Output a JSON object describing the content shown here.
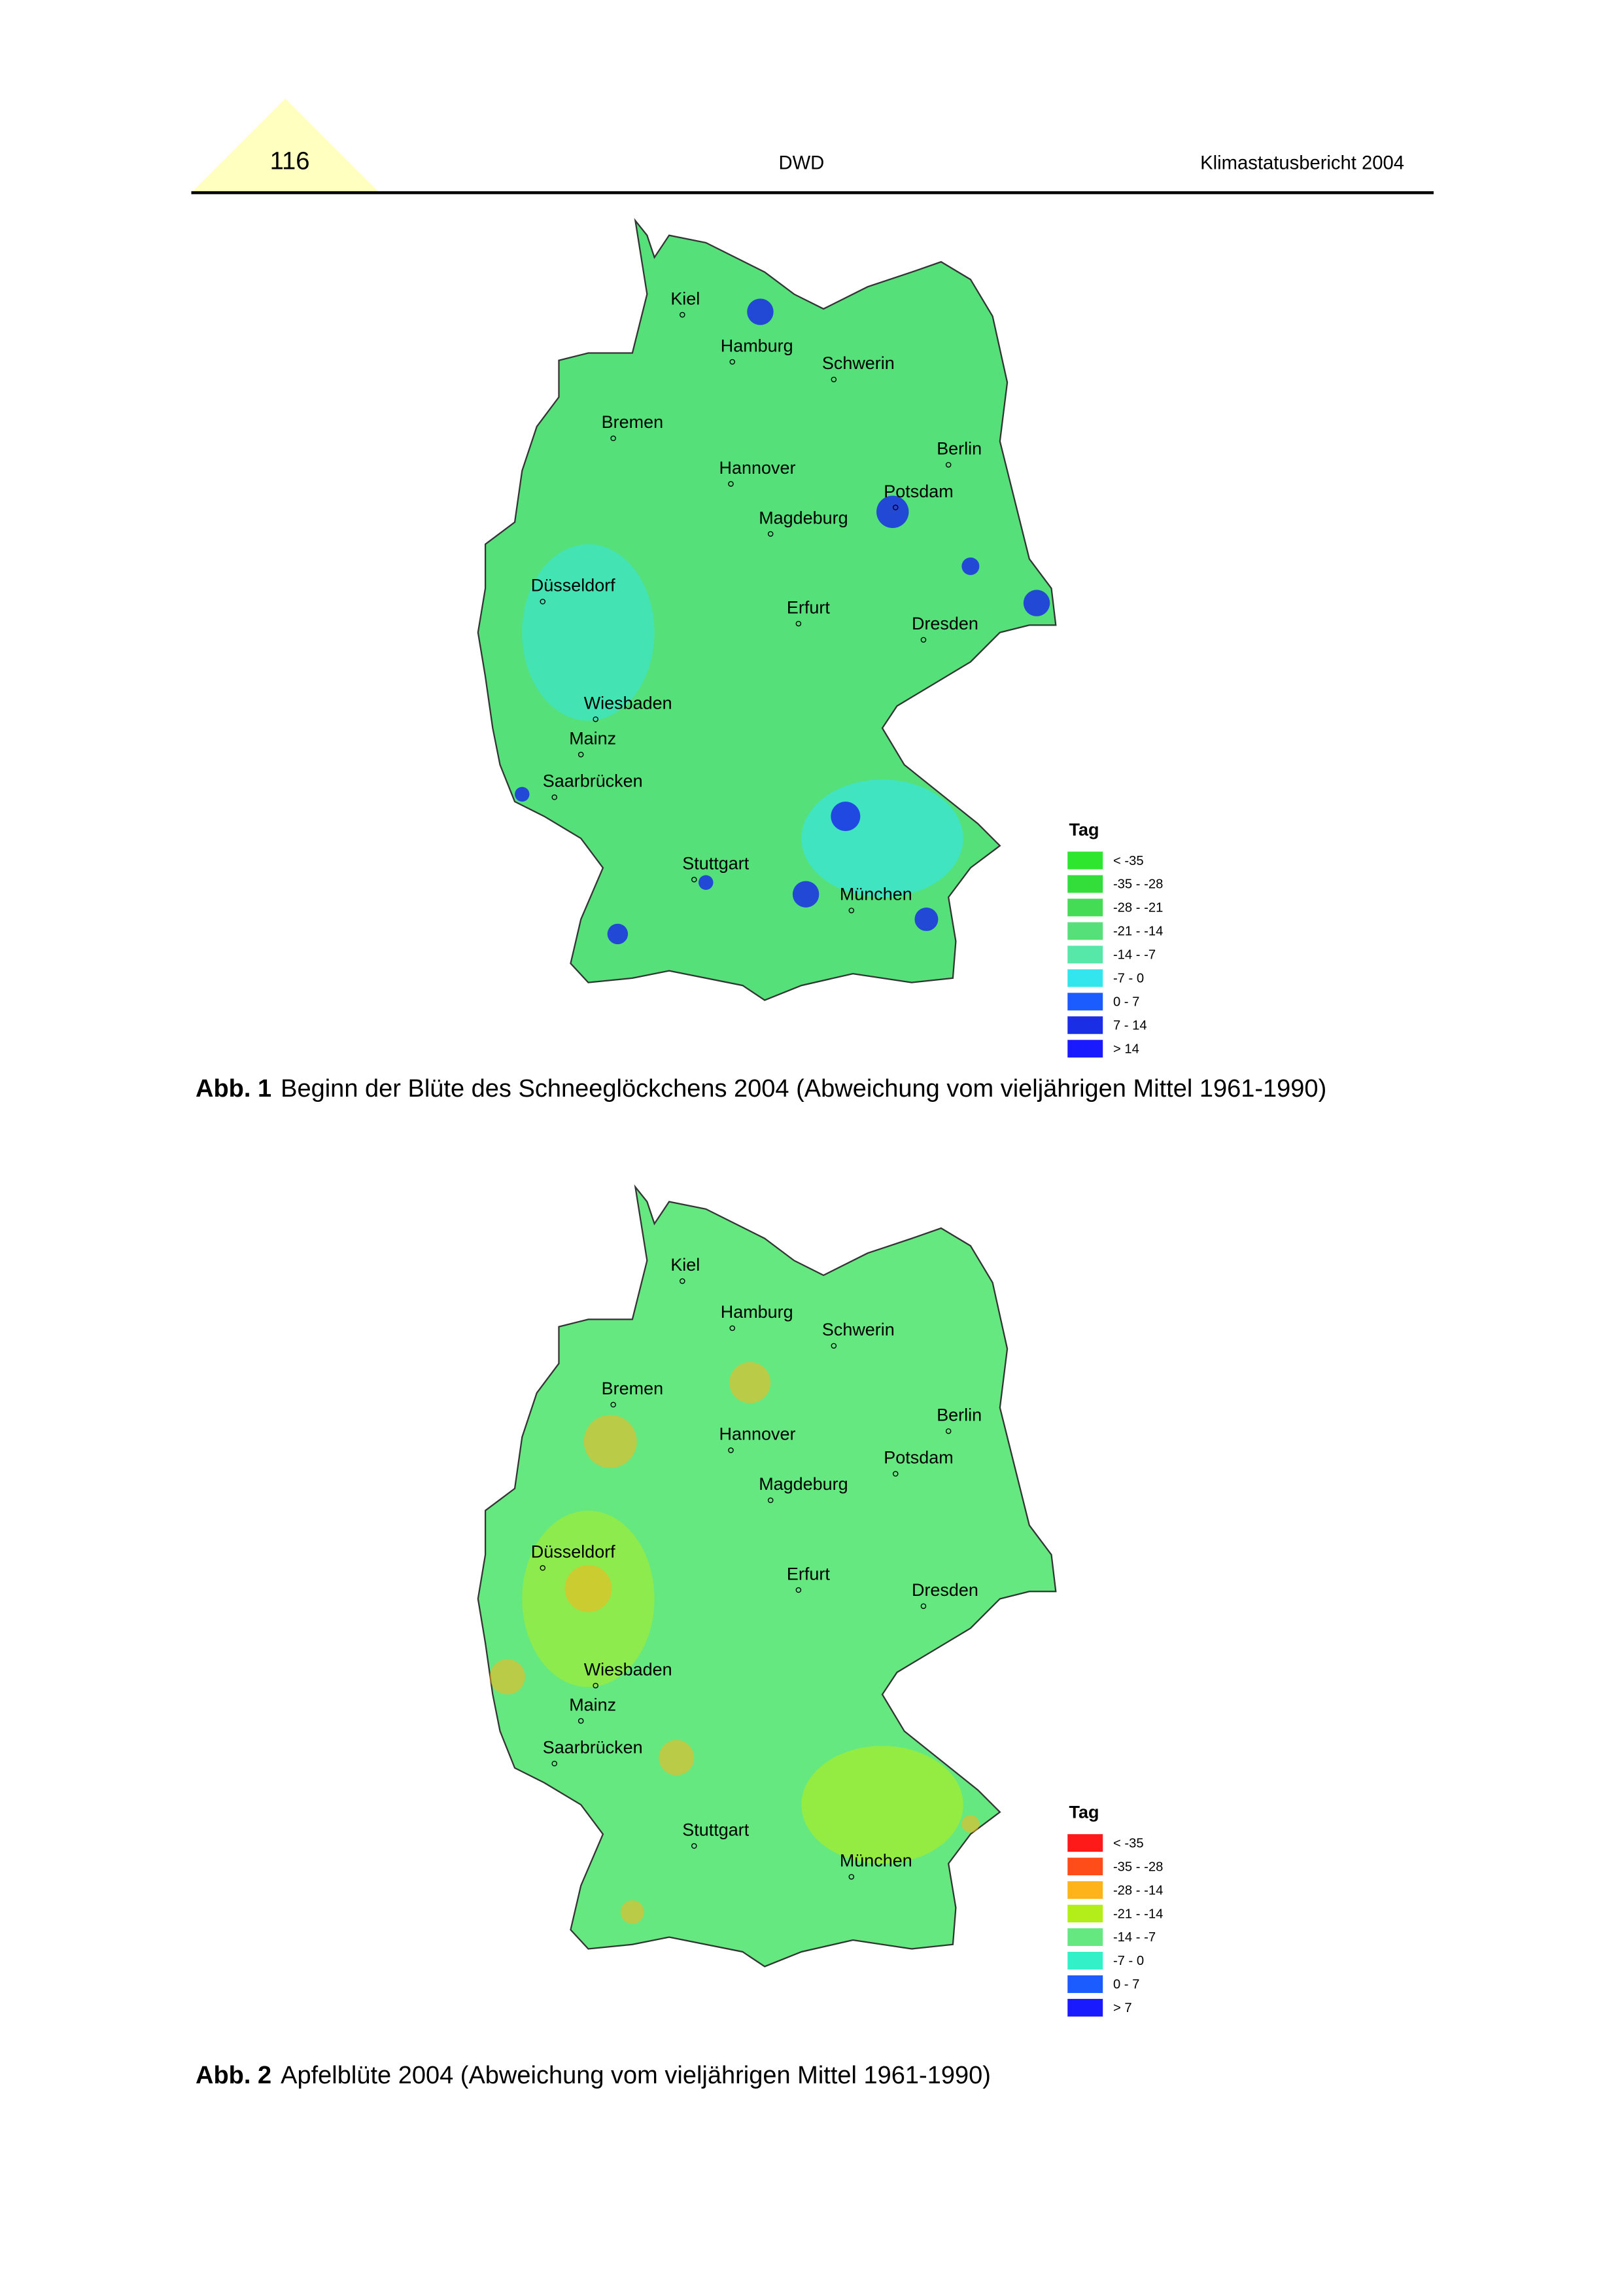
{
  "header": {
    "page_number": "116",
    "center": "DWD",
    "right": "Klimastatusbericht 2004"
  },
  "figures": [
    {
      "cities": [
        "Kiel",
        "Hamburg",
        "Schwerin",
        "Bremen",
        "Berlin",
        "Hannover",
        "Potsdam",
        "Magdeburg",
        "Düsseldorf",
        "Erfurt",
        "Dresden",
        "Wiesbaden",
        "Mainz",
        "Saarbrücken",
        "Stuttgart",
        "München"
      ],
      "legend": {
        "title": "Tag",
        "items": [
          {
            "label": "< -35",
            "color": "#2ee62e"
          },
          {
            "label": "-35 - -28",
            "color": "#33dd3a"
          },
          {
            "label": "-28 - -21",
            "color": "#44dc55"
          },
          {
            "label": "-21 - -14",
            "color": "#55e07a"
          },
          {
            "label": "-14 - -7",
            "color": "#55e8a8"
          },
          {
            "label": "-7 - 0",
            "color": "#33e6ee"
          },
          {
            "label": "0 - 7",
            "color": "#1a5cff"
          },
          {
            "label": "7 - 14",
            "color": "#1a2ee6"
          },
          {
            "label": "> 14",
            "color": "#1a1aff"
          }
        ]
      },
      "caption": {
        "label": "Abb. 1",
        "text": "Beginn der Blüte des Schneeglöckchens 2004 (Abweichung vom vieljährigen Mittel 1961-1990)"
      }
    },
    {
      "cities": [
        "Kiel",
        "Hamburg",
        "Schwerin",
        "Bremen",
        "Berlin",
        "Hannover",
        "Potsdam",
        "Magdeburg",
        "Düsseldorf",
        "Erfurt",
        "Dresden",
        "Wiesbaden",
        "Mainz",
        "Saarbrücken",
        "Stuttgart",
        "München"
      ],
      "legend": {
        "title": "Tag",
        "items": [
          {
            "label": "< -35",
            "color": "#ff1a1a"
          },
          {
            "label": "-35 - -28",
            "color": "#ff4d1a"
          },
          {
            "label": "-28 - -14",
            "color": "#ffb31a"
          },
          {
            "label": "-21 - -14",
            "color": "#b3ee1a"
          },
          {
            "label": "-14 - -7",
            "color": "#66e880"
          },
          {
            "label": "-7 - 0",
            "color": "#33f0c8"
          },
          {
            "label": "0 - 7",
            "color": "#1a5cff"
          },
          {
            "label": "> 7",
            "color": "#1a1aff"
          }
        ]
      },
      "caption": {
        "label": "Abb. 2",
        "text": "Apfelblüte 2004 (Abweichung vom vieljährigen Mittel 1961-1990)"
      }
    }
  ]
}
